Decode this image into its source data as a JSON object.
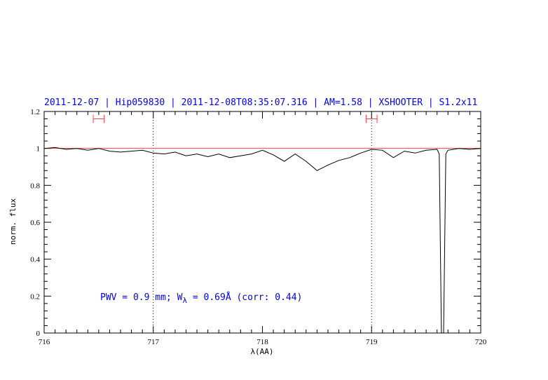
{
  "chart_data": {
    "type": "line",
    "title": "2011-12-07 | Hip059830 | 2011-12-08T08:35:07.316 | AM=1.58 | XSHOOTER | S1.2x11",
    "xlabel": "λ(AA)",
    "ylabel": "norm. flux",
    "xlim": [
      716,
      720
    ],
    "ylim": [
      0,
      1.2
    ],
    "xticks": [
      716,
      717,
      718,
      719,
      720
    ],
    "yticks": [
      0,
      0.2,
      0.4,
      0.6,
      0.8,
      1,
      1.2
    ],
    "ytick_labels": [
      "0",
      "0.2",
      "0.4",
      "0.6",
      "0.8",
      "1",
      "1.2"
    ],
    "grid": false,
    "vlines_dotted": [
      717.0,
      719.0
    ],
    "continuum_level": 1.0,
    "continuum_color": "#ff4040",
    "line_color": "#000000",
    "continuum_windows": [
      [
        716.45,
        716.55
      ],
      [
        718.95,
        719.05
      ]
    ],
    "window_marker_y": 1.16,
    "annotation": {
      "prefix": "PWV  =  0.9  mm;  W",
      "subscript": "λ",
      "suffix": "  =  0.69Å  (corr: 0.44)"
    },
    "series": [
      {
        "x": [
          716.0,
          716.1,
          716.2,
          716.3,
          716.4,
          716.5,
          716.6,
          716.7,
          716.8,
          716.9,
          717.0,
          717.1,
          717.2,
          717.3,
          717.4,
          717.5,
          717.6,
          717.7,
          717.8,
          717.9,
          718.0,
          718.1,
          718.2,
          718.3,
          718.4,
          718.5,
          718.6,
          718.7,
          718.8,
          718.9,
          719.0,
          719.1,
          719.2,
          719.3,
          719.4,
          719.5,
          719.6,
          719.62,
          719.64,
          719.66,
          719.68,
          719.7,
          719.8,
          719.9,
          720.0
        ],
        "y": [
          1.0,
          1.005,
          0.995,
          1.0,
          0.99,
          1.0,
          0.985,
          0.98,
          0.985,
          0.99,
          0.975,
          0.97,
          0.98,
          0.96,
          0.97,
          0.955,
          0.97,
          0.95,
          0.96,
          0.97,
          0.99,
          0.965,
          0.93,
          0.97,
          0.93,
          0.88,
          0.91,
          0.935,
          0.95,
          0.975,
          0.995,
          0.99,
          0.95,
          0.985,
          0.975,
          0.99,
          0.995,
          0.97,
          0.0,
          0.0,
          0.97,
          0.99,
          1.0,
          0.995,
          1.0
        ]
      }
    ]
  }
}
